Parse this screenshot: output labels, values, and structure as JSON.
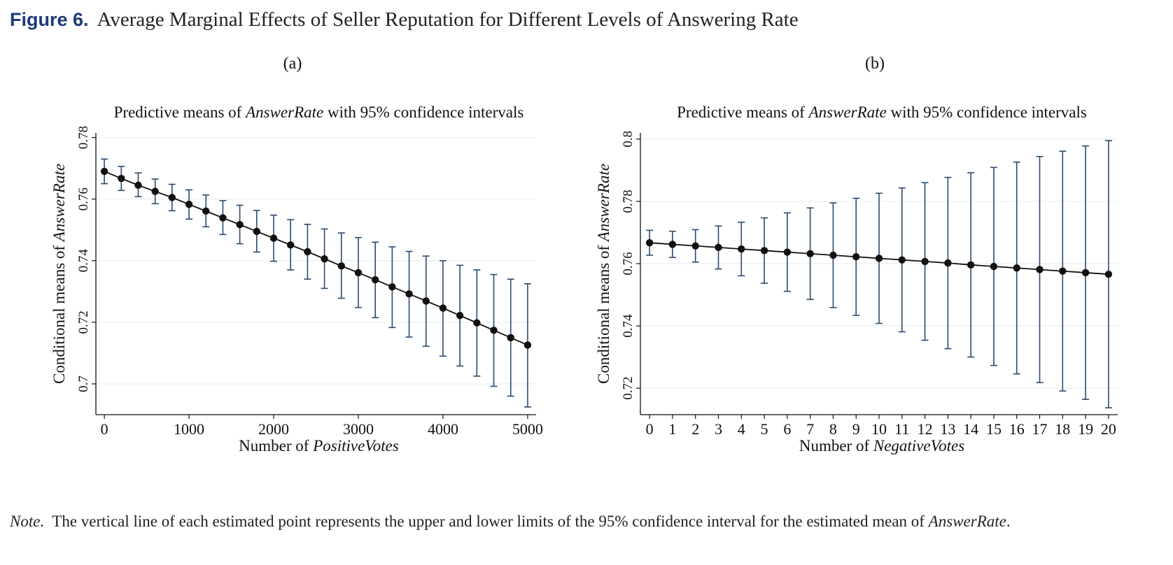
{
  "figure": {
    "label": "Figure 6.",
    "title": "Average Marginal Effects of Seller Reputation for Different Levels of Answering Rate"
  },
  "panels": [
    {
      "label": "(a)"
    },
    {
      "label": "(b)"
    }
  ],
  "note": {
    "prefix": "Note.",
    "text": "The vertical line of each estimated point represents the upper and lower limits of the 95% confidence interval for the estimated mean of",
    "term": "AnswerRate",
    "suffix": "."
  },
  "chart_data": [
    {
      "type": "scatter",
      "title_parts": [
        "Predictive means of ",
        "AnswerRate",
        " with 95% confidence intervals"
      ],
      "xlabel_parts": [
        "Number of ",
        "PositiveVotes"
      ],
      "ylabel_parts": [
        "Conditional means of ",
        "AnswerRate"
      ],
      "xlim": [
        -100,
        5100
      ],
      "ylim": [
        0.69,
        0.7815
      ],
      "xticks": [
        0,
        1000,
        2000,
        3000,
        4000,
        5000
      ],
      "xtick_labels": [
        "0",
        "1000",
        "2000",
        "3000",
        "4000",
        "5000"
      ],
      "yticks": [
        0.7,
        0.72,
        0.74,
        0.76,
        0.78
      ],
      "ytick_labels": [
        "0.7",
        "0.72",
        "0.74",
        "0.76",
        "0.78"
      ],
      "grid": true,
      "color_line": "#111111",
      "color_ci": "#2b4a6f",
      "x": [
        0,
        200,
        400,
        600,
        800,
        1000,
        1200,
        1400,
        1600,
        1800,
        2000,
        2200,
        2400,
        2600,
        2800,
        3000,
        3200,
        3400,
        3600,
        3800,
        4000,
        4200,
        4400,
        4600,
        4800,
        5000
      ],
      "y": [
        0.769,
        0.7667,
        0.7645,
        0.7625,
        0.7605,
        0.7583,
        0.7561,
        0.7539,
        0.7517,
        0.7495,
        0.7473,
        0.7451,
        0.7429,
        0.7406,
        0.7383,
        0.7361,
        0.7338,
        0.7315,
        0.7292,
        0.7269,
        0.7246,
        0.7222,
        0.7198,
        0.7174,
        0.715,
        0.7126
      ],
      "ci_low": [
        0.765,
        0.7628,
        0.7608,
        0.7585,
        0.7562,
        0.7535,
        0.751,
        0.7485,
        0.7455,
        0.7428,
        0.7398,
        0.737,
        0.734,
        0.731,
        0.7278,
        0.7248,
        0.7215,
        0.7183,
        0.7152,
        0.7122,
        0.709,
        0.7058,
        0.7025,
        0.6992,
        0.696,
        0.6925
      ],
      "ci_high": [
        0.773,
        0.7706,
        0.7685,
        0.7665,
        0.7648,
        0.763,
        0.7613,
        0.7595,
        0.758,
        0.7563,
        0.7548,
        0.7533,
        0.7518,
        0.7503,
        0.749,
        0.7475,
        0.746,
        0.7445,
        0.743,
        0.7415,
        0.74,
        0.7385,
        0.737,
        0.7355,
        0.734,
        0.7325
      ]
    },
    {
      "type": "scatter",
      "title_parts": [
        "Predictive means of ",
        "AnswerRate",
        " with 95% confidence intervals"
      ],
      "xlabel_parts": [
        "Number of ",
        "NegativeVotes"
      ],
      "ylabel_parts": [
        "Conditional means of ",
        "AnswerRate"
      ],
      "xlim": [
        -0.4,
        20.4
      ],
      "ylim": [
        0.7115,
        0.802
      ],
      "xticks": [
        0,
        1,
        2,
        3,
        4,
        5,
        6,
        7,
        8,
        9,
        10,
        11,
        12,
        13,
        14,
        15,
        16,
        17,
        18,
        19,
        20
      ],
      "xtick_labels": [
        "0",
        "1",
        "2",
        "3",
        "4",
        "5",
        "6",
        "7",
        "8",
        "9",
        "10",
        "11",
        "12",
        "13",
        "14",
        "15",
        "16",
        "17",
        "18",
        "19",
        "20"
      ],
      "yticks": [
        0.72,
        0.74,
        0.76,
        0.78,
        0.8
      ],
      "ytick_labels": [
        "0.72",
        "0.74",
        "0.76",
        "0.78",
        "0.8"
      ],
      "grid": true,
      "color_line": "#111111",
      "color_ci": "#2b4a6f",
      "x": [
        0,
        1,
        2,
        3,
        4,
        5,
        6,
        7,
        8,
        9,
        10,
        11,
        12,
        13,
        14,
        15,
        16,
        17,
        18,
        19,
        20
      ],
      "y": [
        0.7667,
        0.7662,
        0.7657,
        0.7652,
        0.7647,
        0.7642,
        0.7637,
        0.7632,
        0.7627,
        0.7622,
        0.7617,
        0.7612,
        0.7607,
        0.7602,
        0.7596,
        0.7591,
        0.7586,
        0.7581,
        0.7576,
        0.7571,
        0.7566
      ],
      "ci_low": [
        0.7627,
        0.762,
        0.7605,
        0.7583,
        0.7561,
        0.7537,
        0.7511,
        0.7485,
        0.7459,
        0.7434,
        0.7408,
        0.7381,
        0.7354,
        0.7327,
        0.73,
        0.7273,
        0.7246,
        0.7218,
        0.7191,
        0.7164,
        0.7137
      ],
      "ci_high": [
        0.7707,
        0.7704,
        0.7709,
        0.7721,
        0.7733,
        0.7747,
        0.7763,
        0.7779,
        0.7795,
        0.781,
        0.7826,
        0.7843,
        0.786,
        0.7877,
        0.7892,
        0.7909,
        0.7926,
        0.7944,
        0.7961,
        0.7978,
        0.7995
      ]
    }
  ]
}
